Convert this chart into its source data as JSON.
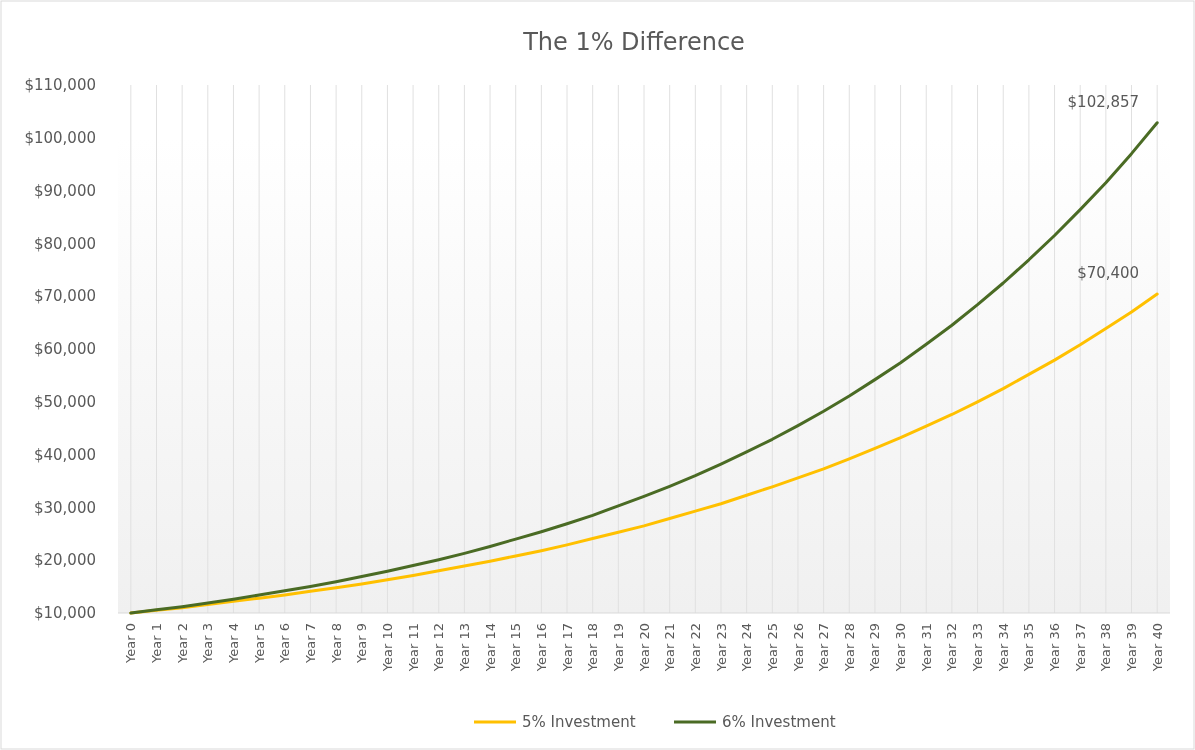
{
  "chart_data": {
    "type": "line",
    "title": "The 1% Difference",
    "categories": [
      "Year 0",
      "Year 1",
      "Year 2",
      "Year 3",
      "Year 4",
      "Year 5",
      "Year 6",
      "Year 7",
      "Year 8",
      "Year 9",
      "Year 10",
      "Year 11",
      "Year 12",
      "Year 13",
      "Year 14",
      "Year 15",
      "Year 16",
      "Year 17",
      "Year 18",
      "Year 19",
      "Year 20",
      "Year 21",
      "Year 22",
      "Year 23",
      "Year 24",
      "Year 25",
      "Year 26",
      "Year 27",
      "Year 28",
      "Year 29",
      "Year 30",
      "Year 31",
      "Year 32",
      "Year 33",
      "Year 34",
      "Year 35",
      "Year 36",
      "Year 37",
      "Year 38",
      "Year 39",
      "Year 40"
    ],
    "series": [
      {
        "name": "5% Investment",
        "color": "#ffc000",
        "values": [
          10000,
          10500,
          11000,
          11600,
          12200,
          12800,
          13400,
          14100,
          14800,
          15500,
          16300,
          17100,
          18000,
          18900,
          19800,
          20800,
          21800,
          22900,
          24100,
          25300,
          26500,
          27900,
          29300,
          30700,
          32300,
          33900,
          35600,
          37300,
          39200,
          41200,
          43200,
          45400,
          47600,
          50000,
          52500,
          55200,
          57900,
          60800,
          63900,
          67000,
          70400
        ]
      },
      {
        "name": "6% Investment",
        "color": "#4a6b24",
        "values": [
          10000,
          10600,
          11200,
          11900,
          12600,
          13400,
          14200,
          15000,
          15900,
          16900,
          17900,
          19000,
          20100,
          21300,
          22600,
          24000,
          25400,
          26900,
          28500,
          30300,
          32100,
          34000,
          36000,
          38200,
          40500,
          42900,
          45500,
          48200,
          51100,
          54200,
          57400,
          60900,
          64500,
          68400,
          72500,
          76900,
          81500,
          86400,
          91500,
          97000,
          102857
        ]
      }
    ],
    "ylim": [
      10000,
      110000
    ],
    "yticks": [
      {
        "value": 10000,
        "label": "$10,000"
      },
      {
        "value": 20000,
        "label": "$20,000"
      },
      {
        "value": 30000,
        "label": "$30,000"
      },
      {
        "value": 40000,
        "label": "$40,000"
      },
      {
        "value": 50000,
        "label": "$50,000"
      },
      {
        "value": 60000,
        "label": "$60,000"
      },
      {
        "value": 70000,
        "label": "$70,000"
      },
      {
        "value": 80000,
        "label": "$80,000"
      },
      {
        "value": 90000,
        "label": "$90,000"
      },
      {
        "value": 100000,
        "label": "$100,000"
      },
      {
        "value": 110000,
        "label": "$110,000"
      }
    ],
    "annotations": [
      {
        "text": "$102,857",
        "x": "Year 40",
        "y": 102857
      },
      {
        "text": "$70,400",
        "x": "Year 40",
        "y": 70400
      }
    ],
    "grid": "x",
    "legend": "bottom",
    "marker": "none",
    "line_style": "solid"
  }
}
